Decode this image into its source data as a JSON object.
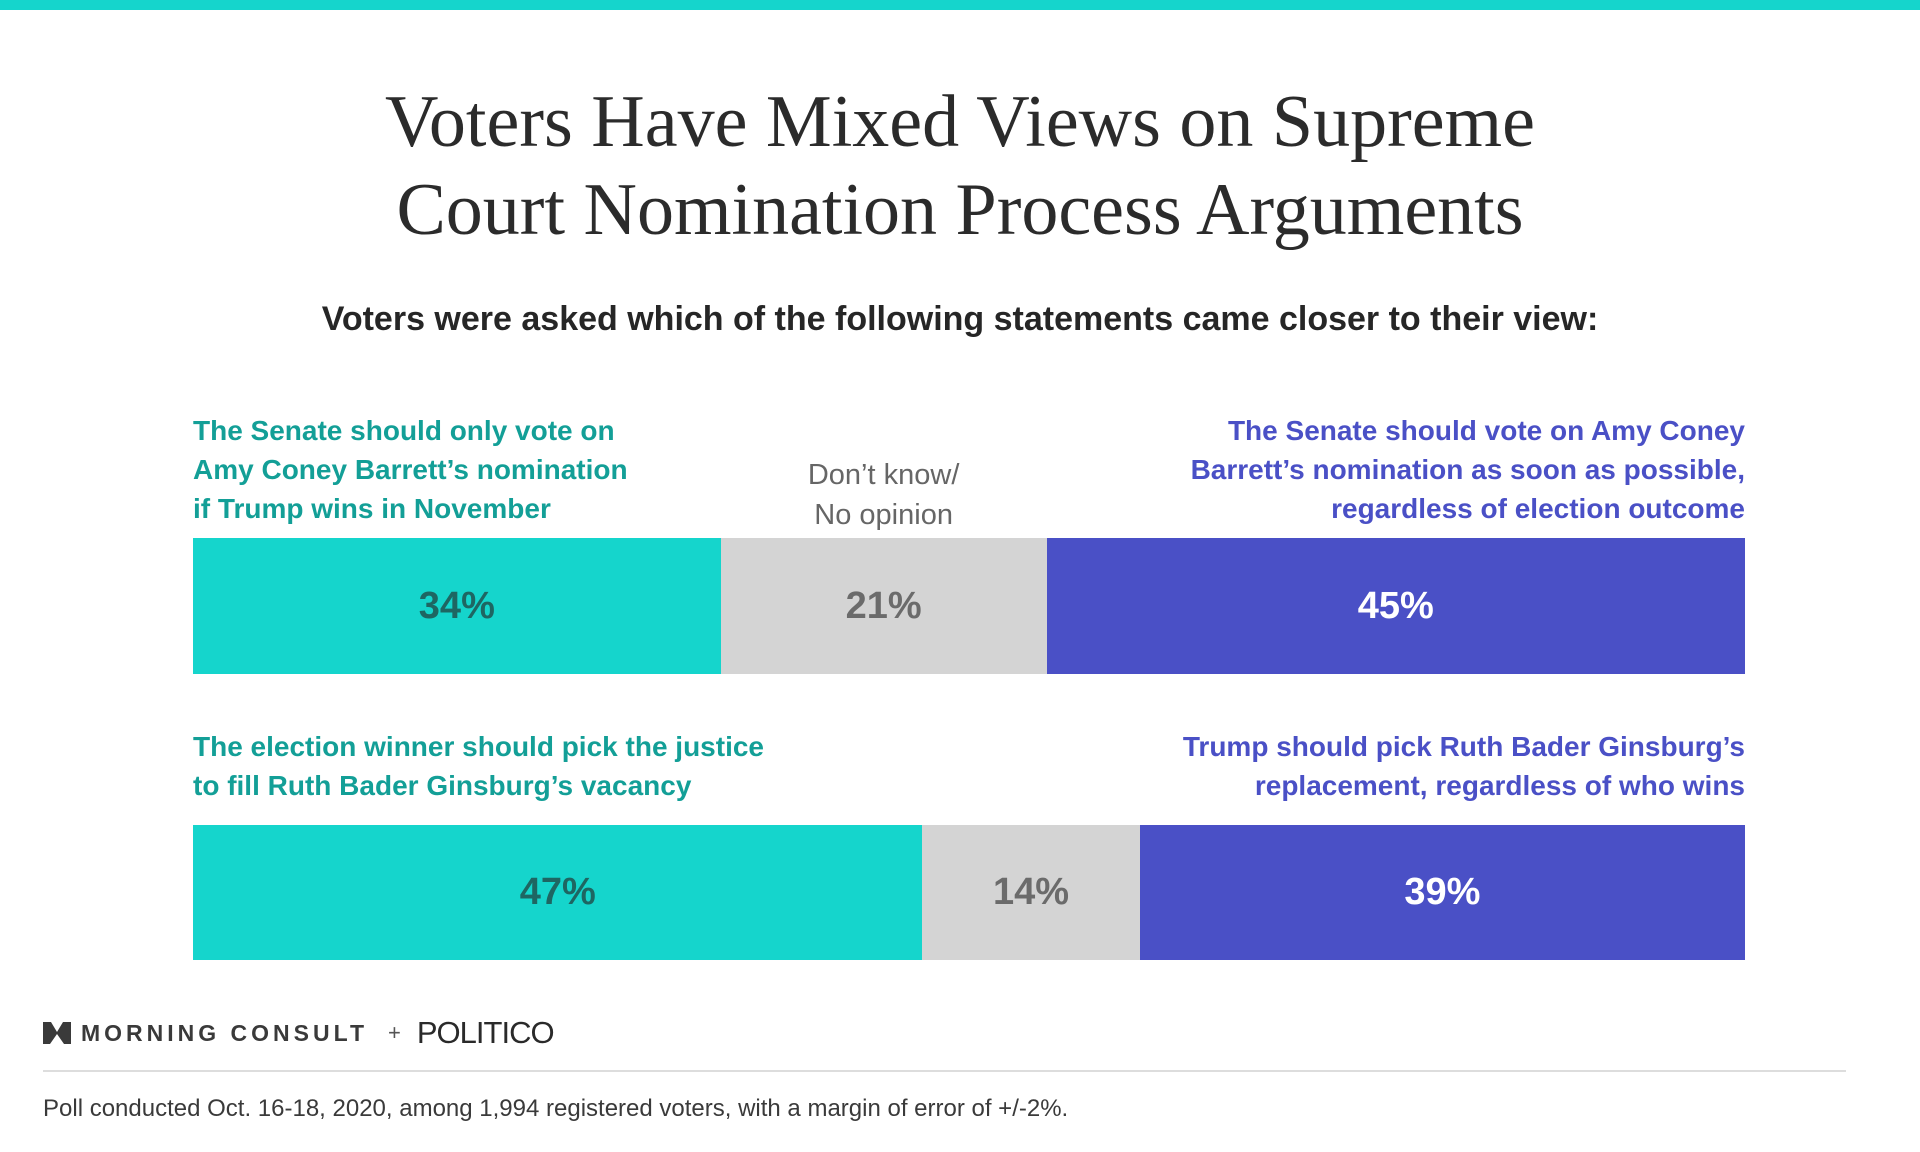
{
  "header": {
    "title_line1": "Voters Have Mixed Views on Supreme",
    "title_line2": "Court Nomination Process Arguments",
    "subtitle": "Voters were asked which of the following statements came closer to their view:"
  },
  "colors": {
    "teal": "#15d5cc",
    "teal_text": "#139f97",
    "gray": "#d4d4d4",
    "blue": "#4a50c6"
  },
  "chart_data": {
    "type": "bar",
    "orientation": "horizontal-stacked",
    "rows": [
      {
        "left_label_lines": [
          "The Senate should only vote on",
          "Amy Coney Barrett’s nomination",
          "if Trump wins in November"
        ],
        "middle_label_lines": [
          "Don’t know/",
          "No opinion"
        ],
        "right_label_lines": [
          "The Senate should vote on Amy Coney",
          "Barrett’s nomination as soon as possible,",
          "regardless of election outcome"
        ],
        "values": [
          34,
          21,
          45
        ],
        "value_labels": [
          "34%",
          "21%",
          "45%"
        ]
      },
      {
        "left_label_lines": [
          "The election winner should pick the justice",
          "to fill Ruth Bader Ginsburg’s vacancy"
        ],
        "middle_label_lines": [],
        "right_label_lines": [
          "Trump should pick Ruth Bader Ginsburg’s",
          "replacement, regardless of who wins"
        ],
        "values": [
          47,
          14,
          39
        ],
        "value_labels": [
          "47%",
          "14%",
          "39%"
        ]
      }
    ],
    "xlim": [
      0,
      100
    ]
  },
  "footer": {
    "brand1": "MORNING CONSULT",
    "plus": "+",
    "brand2": "POLITICO",
    "logo_icon": "morning-consult-m-icon",
    "note": "Poll conducted Oct. 16-18, 2020, among 1,994 registered voters, with a margin of error of +/-2%."
  }
}
